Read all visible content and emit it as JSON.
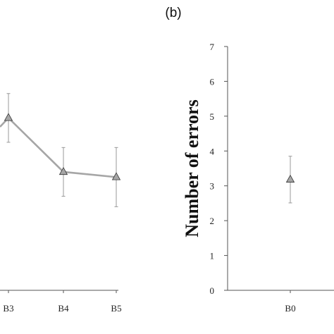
{
  "chart_data": [
    {
      "type": "line",
      "panel_label": "",
      "ylabel": "",
      "categories": [
        "B3",
        "B4",
        "B5"
      ],
      "series": [
        {
          "values": [
            4.95,
            3.4,
            3.25
          ],
          "error": [
            0.7,
            0.7,
            0.85
          ],
          "color": "#a6a6a6",
          "marker": "triangle"
        }
      ],
      "ylim": [
        0,
        7
      ],
      "grid": false,
      "note": ""
    },
    {
      "type": "scatter",
      "panel_label": "(b)",
      "ylabel": "Number of errors",
      "categories": [
        "B0"
      ],
      "yticks": [
        "0",
        "1",
        "2",
        "3",
        "4",
        "5",
        "6",
        "7"
      ],
      "series": [
        {
          "values": [
            3.18
          ],
          "error": [
            0.67
          ],
          "color": "#a6a6a6",
          "marker": "triangle"
        }
      ],
      "ylim": [
        0,
        7
      ],
      "grid": false
    }
  ]
}
